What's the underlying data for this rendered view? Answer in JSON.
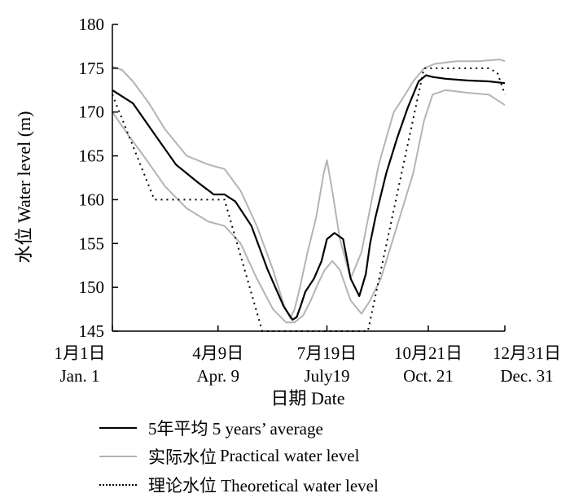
{
  "chart_data": {
    "type": "line",
    "ylabel": "水位 Water level (m)",
    "xlabel": "日期 Date",
    "ylim": [
      145,
      180
    ],
    "yticks": [
      145,
      150,
      155,
      160,
      165,
      170,
      175,
      180
    ],
    "xlim": [
      1,
      365
    ],
    "xticks": [
      {
        "day": 1,
        "label_cn": "1月1日",
        "label_en": "Jan. 1"
      },
      {
        "day": 99,
        "label_cn": "4月9日",
        "label_en": "Apr. 9"
      },
      {
        "day": 200,
        "label_cn": "7月19日",
        "label_en": "July19"
      },
      {
        "day": 294,
        "label_cn": "10月21日",
        "label_en": "Oct. 21"
      },
      {
        "day": 365,
        "label_cn": "12月31日",
        "label_en": "Dec. 31"
      }
    ],
    "grid": false,
    "legend_position": "bottom",
    "series": [
      {
        "name": "5年平均 5 years’ average",
        "name_cn": "5年平均",
        "name_en": "5 years’ average",
        "style": "solid",
        "color": "#000000",
        "x": [
          1,
          20,
          40,
          60,
          80,
          95,
          105,
          115,
          130,
          145,
          160,
          168,
          172,
          176,
          180,
          188,
          195,
          200,
          207,
          215,
          222,
          230,
          236,
          240,
          245,
          255,
          265,
          275,
          285,
          292,
          298,
          310,
          330,
          350,
          365
        ],
        "y": [
          172.5,
          171.0,
          167.5,
          164.0,
          162.0,
          160.6,
          160.6,
          159.8,
          157.0,
          152.0,
          147.8,
          146.3,
          146.6,
          148.0,
          149.5,
          151.0,
          153.0,
          155.5,
          156.2,
          155.5,
          151.0,
          149.0,
          151.5,
          155.0,
          158.0,
          163.0,
          167.0,
          170.5,
          173.5,
          174.2,
          174.0,
          173.8,
          173.6,
          173.5,
          173.3
        ]
      },
      {
        "name": "实际水位 Practical water level (upper)",
        "name_cn": "实际水位",
        "name_en": "Practical water level",
        "style": "solid",
        "color": "#b4b4b4",
        "x": [
          1,
          10,
          20,
          35,
          50,
          70,
          90,
          105,
          120,
          135,
          150,
          160,
          166,
          170,
          175,
          182,
          190,
          197,
          200,
          205,
          212,
          222,
          232,
          240,
          248,
          255,
          262,
          270,
          280,
          290,
          300,
          320,
          340,
          360,
          365
        ],
        "y": [
          175.2,
          174.8,
          173.5,
          171.0,
          168.0,
          165.0,
          164.0,
          163.5,
          161.0,
          157.0,
          152.0,
          148.0,
          146.5,
          147.5,
          150.0,
          154.0,
          158.0,
          163.0,
          164.5,
          161.0,
          155.5,
          151.0,
          154.0,
          159.0,
          164.0,
          167.0,
          170.0,
          171.5,
          173.5,
          175.0,
          175.5,
          175.8,
          175.8,
          176.0,
          175.8
        ]
      },
      {
        "name": "实际水位 Practical water level (lower)",
        "style": "solid",
        "color": "#b4b4b4",
        "x": [
          1,
          15,
          30,
          50,
          70,
          90,
          105,
          120,
          135,
          150,
          162,
          170,
          178,
          185,
          192,
          198,
          205,
          212,
          222,
          232,
          240,
          250,
          260,
          270,
          280,
          290,
          298,
          310,
          330,
          350,
          365
        ],
        "y": [
          170.0,
          167.5,
          165.0,
          161.5,
          159.0,
          157.5,
          157.0,
          155.0,
          151.0,
          147.5,
          146.0,
          146.0,
          146.8,
          148.5,
          150.5,
          152.0,
          153.0,
          152.0,
          148.5,
          147.0,
          148.5,
          151.0,
          155.0,
          159.0,
          163.0,
          169.0,
          172.0,
          172.5,
          172.2,
          172.0,
          170.8
        ]
      },
      {
        "name": "理论水位 Theoretical water level",
        "name_cn": "理论水位",
        "name_en": "Theoretical water level",
        "style": "dotted",
        "color": "#000000",
        "x": [
          1,
          40,
          105,
          140,
          238,
          290,
          350,
          358,
          365
        ],
        "y": [
          172.0,
          160.0,
          160.0,
          145.0,
          145.0,
          175.0,
          175.0,
          174.5,
          172.0
        ]
      }
    ]
  }
}
